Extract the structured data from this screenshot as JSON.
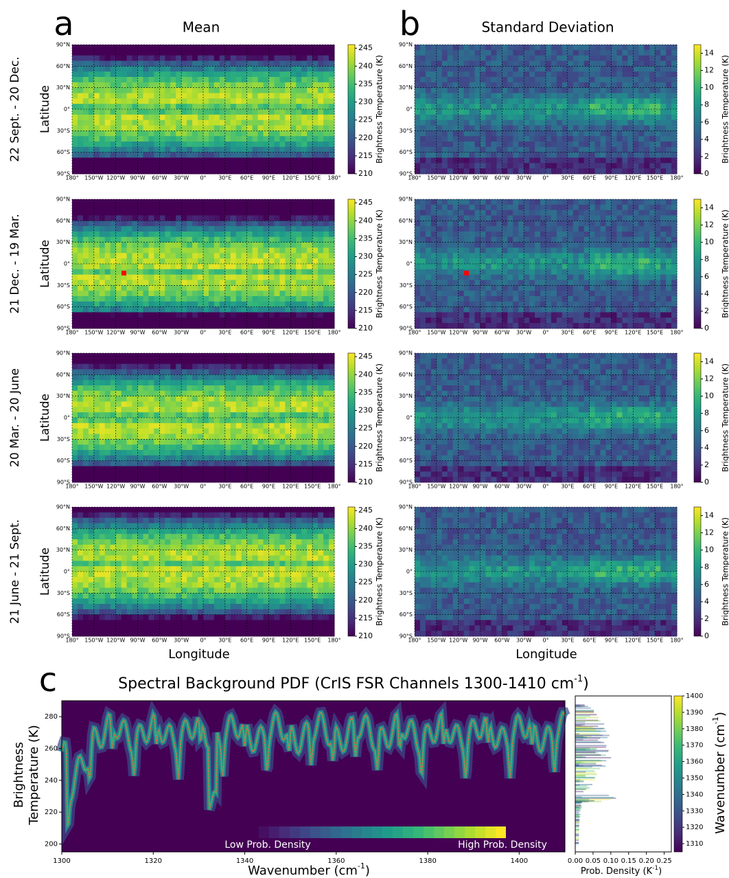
{
  "panel_labels": [
    "a",
    "b",
    "c"
  ],
  "columns": [
    {
      "title": "Mean",
      "colorbar": {
        "label": "Brightness Temperature (K)",
        "lim": [
          210,
          246
        ],
        "ticks": [
          210,
          215,
          220,
          225,
          230,
          235,
          240,
          245
        ]
      }
    },
    {
      "title": "Standard Deviation",
      "colorbar": {
        "label": "Brightness Temperature (K)",
        "lim": [
          0,
          15
        ],
        "ticks": [
          0,
          2,
          4,
          6,
          8,
          10,
          12,
          14
        ]
      }
    }
  ],
  "rows": [
    "22 Sept. - 20 Dec.",
    "21 Dec. - 19 Mar.",
    "20 Mar. - 20 June",
    "21 June - 21 Sept."
  ],
  "map_axes": {
    "ylabel": "Latitude",
    "xlabel": "Longitude",
    "lat_ticks": [
      "90°N",
      "60°N",
      "30°N",
      "0°",
      "30°S",
      "60°S",
      "90°S"
    ],
    "lon_ticks": [
      "180°",
      "150°W",
      "120°W",
      "90°W",
      "60°W",
      "30°W",
      "0°",
      "30°E",
      "60°E",
      "90°E",
      "120°E",
      "150°E",
      "180°"
    ]
  },
  "chart_data": {
    "type": "heatmap",
    "title": "Spectral Background PDF (CrIS FSR Channels 1300-1410 cm",
    "title_sup": "-1",
    "title_end": ")",
    "x_label": "Wavenumber (cm",
    "x_label_sup": "-1",
    "x_label_end": ")",
    "y_label": [
      "Brightness",
      "Temperature (K)"
    ],
    "xlim": [
      1300,
      1410
    ],
    "xticks": [
      1300,
      1320,
      1340,
      1360,
      1380,
      1400
    ],
    "ylim": [
      195,
      290
    ],
    "yticks": [
      200,
      220,
      240,
      260,
      280
    ],
    "legend_labels": [
      "Low Prob. Density",
      "High Prob. Density"
    ],
    "side": {
      "x_label": "Prob. Density (K",
      "x_label_sup": "-1",
      "x_label_end": ")",
      "xlim": [
        0,
        0.27
      ],
      "xticks": [
        {
          "value": 0,
          "label": "0.00"
        },
        0.05,
        {
          "value": 0.1,
          "label": "0.10"
        },
        0.15,
        {
          "value": 0.2,
          "label": "0.20"
        },
        0.25
      ]
    },
    "colorbar": {
      "label": "Wavenumber (cm",
      "label_sup": "-1",
      "label_end": ")",
      "lim": [
        1305,
        1400
      ],
      "ticks": [
        1310,
        1320,
        1330,
        1340,
        1350,
        1360,
        1370,
        1380,
        1390,
        1400
      ]
    }
  }
}
